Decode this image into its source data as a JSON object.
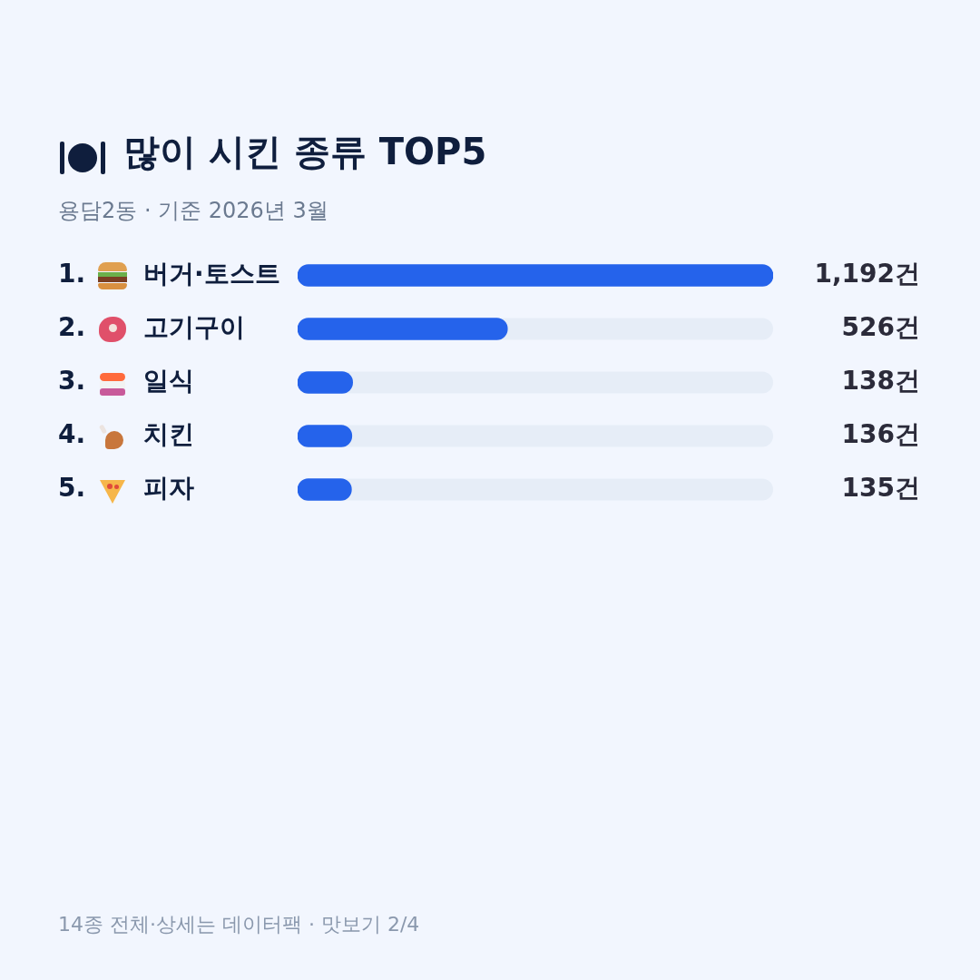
{
  "chart_data": {
    "type": "bar",
    "orientation": "horizontal",
    "title": "많이 시킨 종류 TOP5",
    "subtitle": "용담2동 · 기준 2026년 3월",
    "categories": [
      "1. 버거·토스트",
      "2. 고기구이",
      "3. 일식",
      "4. 치킨",
      "5. 피자"
    ],
    "values": [
      1192,
      526,
      138,
      136,
      135
    ],
    "color": "#2563eb",
    "value_labels": [
      "1,192건",
      "526건",
      "138건",
      "136건",
      "135건"
    ],
    "annotations": [
      "14종 전체·상세는 데이터팩 · 맛보기 2/4"
    ]
  }
}
